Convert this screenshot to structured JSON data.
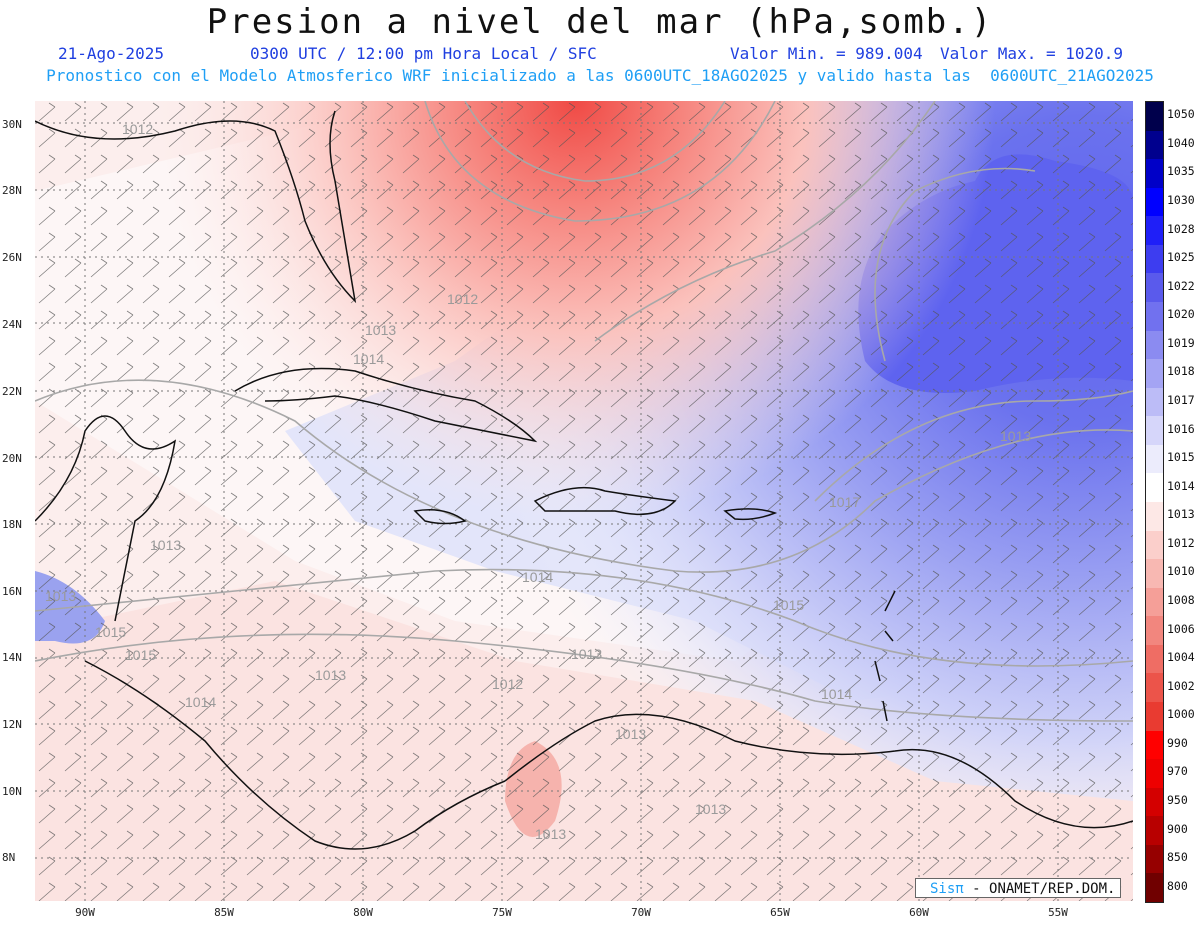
{
  "header": {
    "title": "Presion a nivel del mar (hPa,somb.)",
    "date": "21-Ago-2025",
    "time": "0300 UTC / 12:00 pm Hora Local / SFC",
    "vmin": "Valor Min. = 989.004",
    "vmax": "Valor Max. = 1020.9",
    "subtitle": "Pronostico con el Modelo Atmosferico WRF inicializado a las 0600UTC_18AGO2025 y valido hasta las  0600UTC_21AGO2025"
  },
  "map": {
    "lat_labels": [
      "30N",
      "28N",
      "26N",
      "24N",
      "22N",
      "20N",
      "18N",
      "16N",
      "14N",
      "12N",
      "10N",
      "8N"
    ],
    "lon_labels": [
      "90W",
      "85W",
      "80W",
      "75W",
      "70W",
      "65W",
      "60W",
      "55W"
    ],
    "contour_labels": [
      "1012",
      "1012",
      "1013",
      "1014",
      "1017",
      "1013",
      "1013",
      "1015",
      "1014",
      "1013",
      "1014",
      "1015",
      "1013",
      "1013",
      "1012",
      "1013",
      "1013",
      "1014",
      "1015",
      "1013"
    ],
    "colors": {
      "high_pressure": "#4a5ee8",
      "low_pressure": "#f25a55",
      "background": "#ffffff"
    }
  },
  "colorbar": {
    "levels": [
      "1050",
      "1040",
      "1035",
      "1030",
      "1028",
      "1025",
      "1022",
      "1020",
      "1019",
      "1018",
      "1017",
      "1016",
      "1015",
      "1014",
      "1013",
      "1012",
      "1010",
      "1008",
      "1006",
      "1004",
      "1002",
      "1000",
      "990",
      "970",
      "950",
      "900",
      "850",
      "800"
    ],
    "colors": [
      "#00004c",
      "#00008e",
      "#0000c8",
      "#0000ff",
      "#1f1ff8",
      "#3d3df0",
      "#5a5aec",
      "#7171ef",
      "#8b8bf1",
      "#a4a4f4",
      "#bcbcf7",
      "#d6d6fa",
      "#ececfc",
      "#ffffff",
      "#fde8e6",
      "#fbcfcb",
      "#f8b8b2",
      "#f59f98",
      "#f2867e",
      "#ef6d64",
      "#ec544a",
      "#e93b31",
      "#ff0000",
      "#ee0000",
      "#d40000",
      "#b80000",
      "#960000",
      "#700000"
    ]
  },
  "credit": {
    "brand": "Sisπ",
    "org": "- ONAMET/REP.DOM."
  }
}
